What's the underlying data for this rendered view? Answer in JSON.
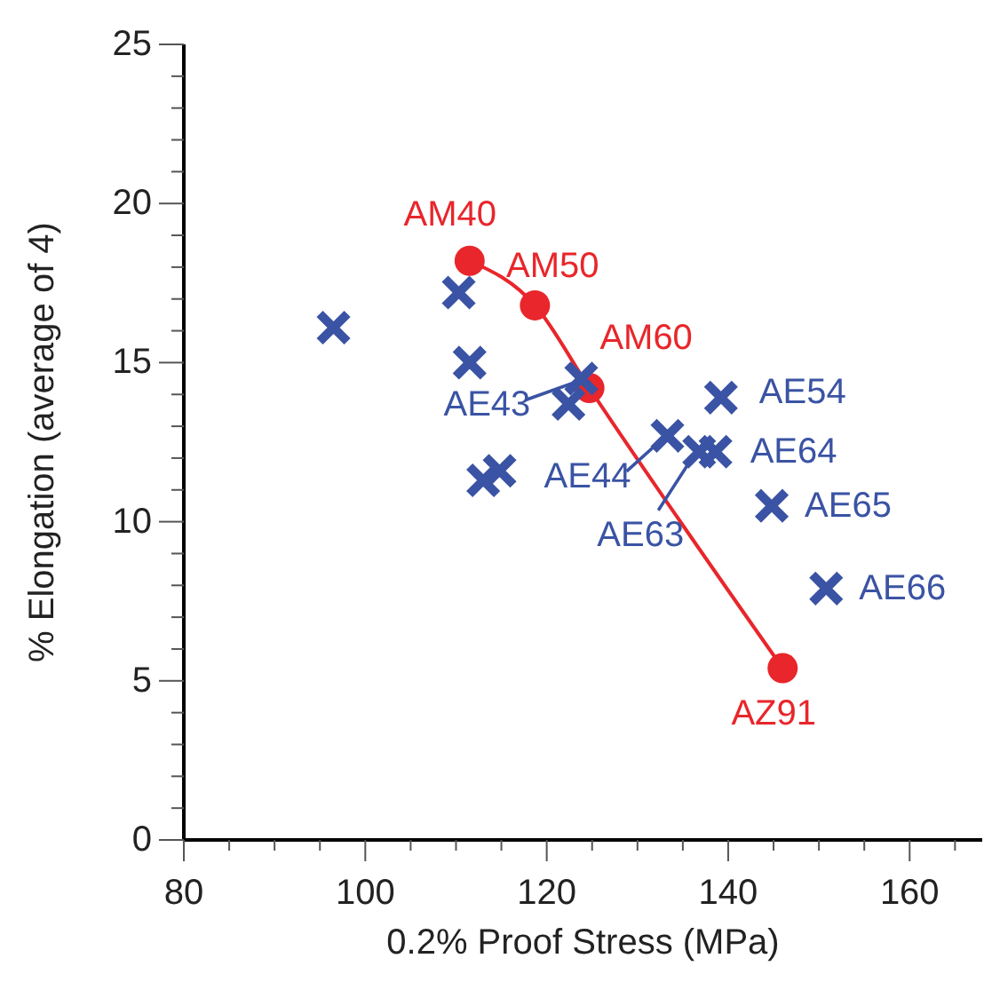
{
  "chart_data": {
    "type": "scatter",
    "xlabel": "0.2% Proof Stress (MPa)",
    "ylabel": "% Elongation (average of 4)",
    "xlim": [
      80,
      168
    ],
    "ylim": [
      0,
      25
    ],
    "xticks": [
      80,
      {
        "value": 85,
        "label": null
      },
      {
        "value": 90,
        "label": null
      },
      {
        "value": 95,
        "label": null
      },
      100,
      {
        "value": 105,
        "label": null
      },
      {
        "value": 110,
        "label": null
      },
      {
        "value": 115,
        "label": null
      },
      120,
      {
        "value": 125,
        "label": null
      },
      {
        "value": 130,
        "label": null
      },
      {
        "value": 135,
        "label": null
      },
      140,
      {
        "value": 145,
        "label": null
      },
      {
        "value": 150,
        "label": null
      },
      {
        "value": 155,
        "label": null
      },
      160,
      {
        "value": 165,
        "label": null
      }
    ],
    "yticks": [
      0,
      {
        "value": 1,
        "label": null
      },
      {
        "value": 2,
        "label": null
      },
      {
        "value": 3,
        "label": null
      },
      {
        "value": 4,
        "label": null
      },
      5,
      {
        "value": 6,
        "label": null
      },
      {
        "value": 7,
        "label": null
      },
      {
        "value": 8,
        "label": null
      },
      {
        "value": 9,
        "label": null
      },
      10,
      {
        "value": 11,
        "label": null
      },
      {
        "value": 12,
        "label": null
      },
      {
        "value": 13,
        "label": null
      },
      {
        "value": 14,
        "label": null
      },
      15,
      {
        "value": 16,
        "label": null
      },
      {
        "value": 17,
        "label": null
      },
      {
        "value": 18,
        "label": null
      },
      {
        "value": 19,
        "label": null
      },
      20,
      {
        "value": 21,
        "label": null
      },
      {
        "value": 22,
        "label": null
      },
      {
        "value": 23,
        "label": null
      },
      {
        "value": 24,
        "label": null
      },
      25
    ],
    "grid": false,
    "series": [
      {
        "type": "line",
        "color": "#e8262b",
        "x": [
          111.5,
          118.7,
          124.7,
          146
        ],
        "values": [
          18.2,
          16.8,
          14.2,
          5.4
        ],
        "marker": "none"
      },
      {
        "color": "#e8262b",
        "x": [
          111.5,
          118.7,
          124.7,
          146
        ],
        "values": [
          18.2,
          16.8,
          14.2,
          5.4
        ],
        "marker": "circle"
      },
      {
        "color": "#3a53a4",
        "x": [
          96.5,
          110.3,
          111.5,
          123.8,
          122.4,
          113,
          114.8,
          133.3,
          136.8,
          138.6,
          139.2,
          144.8,
          150.8
        ],
        "values": [
          16.1,
          17.2,
          15,
          14.5,
          13.7,
          11.3,
          11.6,
          12.7,
          12.2,
          12.2,
          13.9,
          10.5,
          7.9
        ],
        "marker": "cross"
      }
    ],
    "annotations": [
      {
        "text": "AM40",
        "x": 111.5,
        "y": 18.2
      },
      {
        "text": "AM50",
        "x": 118.7,
        "y": 16.8
      },
      {
        "text": "AM60",
        "x": 124.7,
        "y": 14.2
      },
      {
        "text": "AZ91",
        "x": 146,
        "y": 5.4
      },
      {
        "text": "AE43",
        "x": 123.8,
        "y": 14.5
      },
      {
        "text": "AE44",
        "x": 133.3,
        "y": 12.7
      },
      {
        "text": "AE63",
        "x": 136.8,
        "y": 12.2
      },
      {
        "text": "AE54",
        "x": 139.2,
        "y": 13.9
      },
      {
        "text": "AE64",
        "x": 138.6,
        "y": 12.2
      },
      {
        "text": "AE65",
        "x": 144.8,
        "y": 10.5
      },
      {
        "text": "AE66",
        "x": 150.8,
        "y": 7.9
      }
    ]
  }
}
